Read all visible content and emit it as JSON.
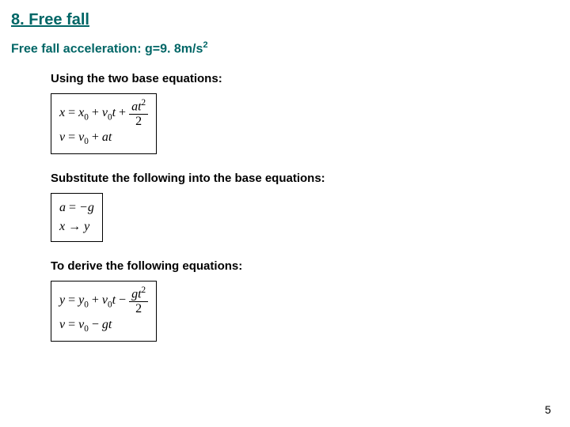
{
  "title": "8. Free fall",
  "subtitle_prefix": "Free fall acceleration: g=9. 8m/s",
  "subtitle_exp": "2",
  "labels": {
    "using": "Using the two base equations:",
    "substitute": "Substitute the following into the base equations:",
    "derive": "To derive the following equations:"
  },
  "page_number": "5",
  "colors": {
    "heading": "#006666",
    "text": "#000000",
    "background": "#ffffff",
    "border": "#000000"
  },
  "font_sizes_pt": {
    "title": 16,
    "subtitle": 12,
    "label": 11,
    "equation": 12,
    "page_num": 10
  },
  "equations": {
    "base": {
      "row1": {
        "lhs": "x",
        "eq": " = ",
        "t1": "x",
        "t1sub": "0",
        "plus1": " + ",
        "t2": "v",
        "t2sub": "0",
        "t2var": "t",
        "plus2": " + ",
        "frac_num_a": "at",
        "frac_num_exp": "2",
        "frac_den": "2"
      },
      "row2": {
        "lhs": "v",
        "eq": " = ",
        "t1": "v",
        "t1sub": "0",
        "plus1": " + ",
        "t2": "at"
      }
    },
    "subst": {
      "row1": {
        "lhs": "a",
        "eq": " = ",
        "rhs": "−g"
      },
      "row2": {
        "lhs": "x",
        "arrow": " → ",
        "rhs": "y"
      }
    },
    "derived": {
      "row1": {
        "lhs": "y",
        "eq": " = ",
        "t1": "y",
        "t1sub": "0",
        "plus1": " + ",
        "t2": "v",
        "t2sub": "0",
        "t2var": "t",
        "minus": " − ",
        "frac_num_a": "gt",
        "frac_num_exp": "2",
        "frac_den": "2"
      },
      "row2": {
        "lhs": "v",
        "eq": " = ",
        "t1": "v",
        "t1sub": "0",
        "minus": " − ",
        "t2": "gt"
      }
    }
  }
}
